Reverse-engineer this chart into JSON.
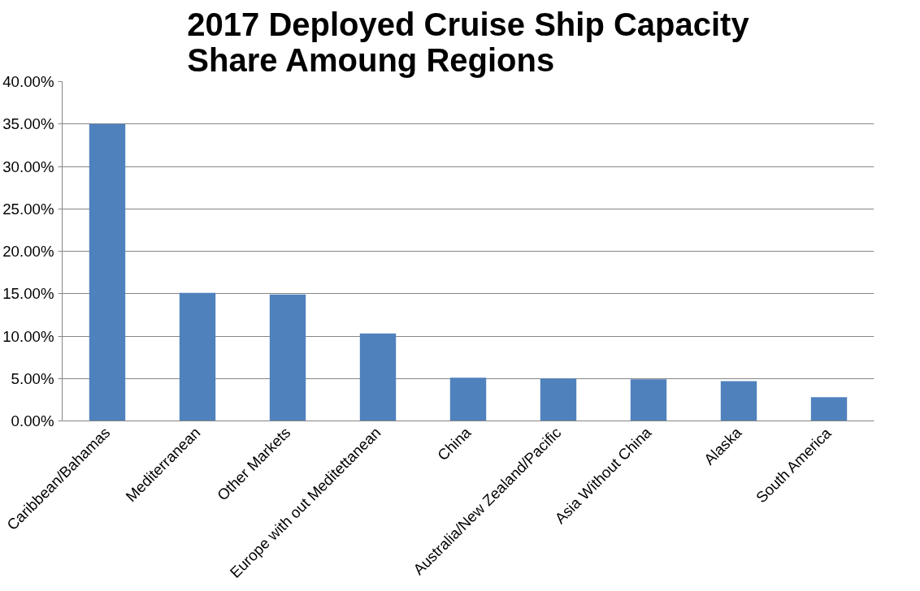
{
  "chart_data": {
    "type": "bar",
    "title": "2017 Deployed Cruise Ship Capacity Share Amoung Regions",
    "categories": [
      "Caribbean/Bahamas",
      "Mediterranean",
      "Other Markets",
      "Europe with out Meditettanean",
      "China",
      "Australia/New Zealand/Pacific",
      "Asia Without China",
      "Alaska",
      "South America"
    ],
    "values": [
      35.0,
      15.1,
      14.9,
      10.3,
      5.1,
      5.0,
      4.9,
      4.7,
      2.8
    ],
    "color": "#4f81bd",
    "ylim": [
      0,
      40
    ],
    "yticks": [
      {
        "value": 0,
        "label": "0.00%"
      },
      {
        "value": 5,
        "label": "5.00%"
      },
      {
        "value": 10,
        "label": "10.00%"
      },
      {
        "value": 15,
        "label": "15.00%"
      },
      {
        "value": 20,
        "label": "20.00%"
      },
      {
        "value": 25,
        "label": "25.00%"
      },
      {
        "value": 30,
        "label": "30.00%"
      },
      {
        "value": 35,
        "label": "35.00%"
      },
      {
        "value": 40,
        "label": "40.00%"
      }
    ],
    "grid": "y"
  }
}
